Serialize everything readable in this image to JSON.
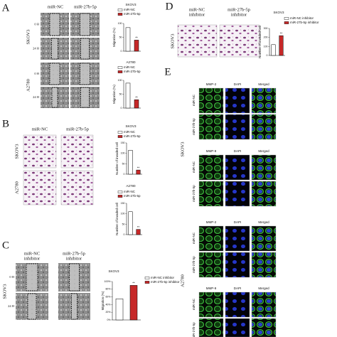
{
  "panels": {
    "A": {
      "label": "A",
      "columns": [
        "miR-NC",
        "miR-27b-5p"
      ],
      "cell_lines": [
        "SKOV3",
        "A2780"
      ],
      "times": [
        "0 H",
        "24 H"
      ]
    },
    "B": {
      "label": "B",
      "columns": [
        "miR-NC",
        "miR-27b-5p"
      ],
      "cell_lines": [
        "SKOV3",
        "A2780"
      ]
    },
    "C": {
      "label": "C",
      "columns": [
        [
          "miR-NC",
          "inhibitor"
        ],
        [
          "miR-27b-5p",
          "inhibitor"
        ]
      ],
      "cell_line": "SKOV3",
      "times": [
        "0 H",
        "24 H"
      ]
    },
    "D": {
      "label": "D",
      "columns": [
        [
          "miR-NC",
          "inhibitor"
        ],
        [
          "miR-27b-5p",
          "inhibitor"
        ]
      ],
      "cell_line": "SKOV3"
    },
    "E": {
      "label": "E",
      "markers": [
        "MMP-2",
        "MMP-9"
      ],
      "stains": [
        "DAPI",
        "Merged"
      ],
      "rows": [
        "miR-NC",
        "miR-27b-5p"
      ],
      "cell_lines": [
        "SKOV3",
        "A2780"
      ]
    }
  },
  "chart_data": [
    {
      "type": "bar",
      "title": "SKOV3",
      "ylabel": "Migration (%)",
      "ylim": [
        0,
        100
      ],
      "yticks": [
        0,
        50,
        100
      ],
      "annotation": "**",
      "series": [
        {
          "name": "miR-NC",
          "color": "#ffffff",
          "values": [
            85
          ]
        },
        {
          "name": "miR-27b-5p",
          "color": "#c62828",
          "values": [
            40
          ]
        }
      ]
    },
    {
      "type": "bar",
      "title": "A2780",
      "ylabel": "Migration (%)",
      "ylim": [
        0,
        100
      ],
      "yticks": [
        0,
        50,
        100
      ],
      "annotation": "**",
      "series": [
        {
          "name": "miR-NC",
          "color": "#ffffff",
          "values": [
            90
          ]
        },
        {
          "name": "miR-27b-5p",
          "color": "#c62828",
          "values": [
            30
          ]
        }
      ]
    },
    {
      "type": "bar",
      "title": "SKOV3",
      "ylabel": "Number of invaded cell",
      "ylim": [
        0,
        150
      ],
      "yticks": [
        0,
        50,
        100,
        150
      ],
      "annotation": "**",
      "series": [
        {
          "name": "miR-NC",
          "color": "#ffffff",
          "values": [
            115
          ]
        },
        {
          "name": "miR-27b-5p",
          "color": "#c62828",
          "values": [
            20
          ]
        }
      ]
    },
    {
      "type": "bar",
      "title": "A2780",
      "ylabel": "Number of invaded cell",
      "ylim": [
        0,
        150
      ],
      "yticks": [
        0,
        50,
        100,
        150
      ],
      "annotation": "**",
      "series": [
        {
          "name": "miR-NC",
          "color": "#ffffff",
          "values": [
            110
          ]
        },
        {
          "name": "miR-27b-5p",
          "color": "#c62828",
          "values": [
            25
          ]
        }
      ]
    },
    {
      "type": "bar",
      "title": "SKOV3",
      "ylabel": "Migration (%)",
      "ylim": [
        0,
        100
      ],
      "annotation": "**",
      "yticks": [
        {
          "value": 0,
          "label": "0%"
        },
        {
          "value": 20,
          "label": "20%"
        },
        {
          "value": 40,
          "label": "40%"
        },
        {
          "value": 60,
          "label": "60%"
        },
        {
          "value": 80,
          "label": "80%"
        },
        {
          "value": 100,
          "label": "100%"
        }
      ],
      "series": [
        {
          "name": "miR-NC inhibitor",
          "color": "#ffffff",
          "values": [
            55
          ]
        },
        {
          "name": "miR-27b-5p inhibitor",
          "color": "#c62828",
          "values": [
            90
          ]
        }
      ]
    },
    {
      "type": "bar",
      "title": "SKOV3",
      "ylabel": "Number of invaded cell",
      "ylim": [
        0,
        300
      ],
      "yticks": [
        0,
        100,
        200,
        300
      ],
      "annotation": "**",
      "series": [
        {
          "name": "miR-NC inhibitor",
          "color": "#ffffff",
          "values": [
            120
          ]
        },
        {
          "name": "miR-27b-5p inhibitor",
          "color": "#c62828",
          "values": [
            220
          ]
        }
      ]
    }
  ]
}
